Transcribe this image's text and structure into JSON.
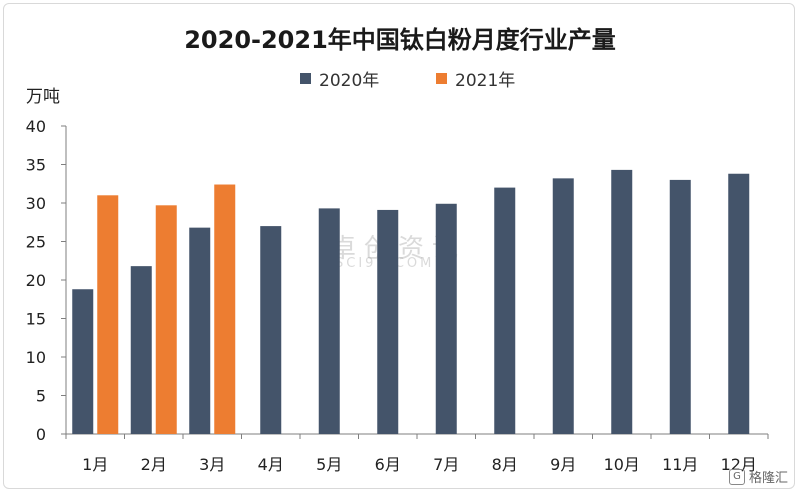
{
  "colors": {
    "series_2020": "#44546a",
    "series_2021": "#ed7d31"
  },
  "watermark": {
    "main": "卓创资讯",
    "sub": "SCI99.COM"
  },
  "brand": {
    "icon": "gelonghui-logo-icon",
    "text": "格隆汇"
  },
  "chart_data": {
    "type": "bar",
    "title": "2020-2021年中国钛白粉月度行业产量",
    "ylabel": "万吨",
    "xlabel": "",
    "ylim": [
      0,
      40
    ],
    "yticks": [
      0,
      5,
      10,
      15,
      20,
      25,
      30,
      35,
      40
    ],
    "grid": false,
    "legend_position": "top",
    "categories": [
      "1月",
      "2月",
      "3月",
      "4月",
      "5月",
      "6月",
      "7月",
      "8月",
      "9月",
      "10月",
      "11月",
      "12月"
    ],
    "series": [
      {
        "name": "2020年",
        "values": [
          18.8,
          21.8,
          26.8,
          27.0,
          29.3,
          29.1,
          29.9,
          32.0,
          33.2,
          34.3,
          33.0,
          33.8
        ]
      },
      {
        "name": "2021年",
        "values": [
          31.0,
          29.7,
          32.4,
          null,
          null,
          null,
          null,
          null,
          null,
          null,
          null,
          null
        ]
      }
    ]
  }
}
